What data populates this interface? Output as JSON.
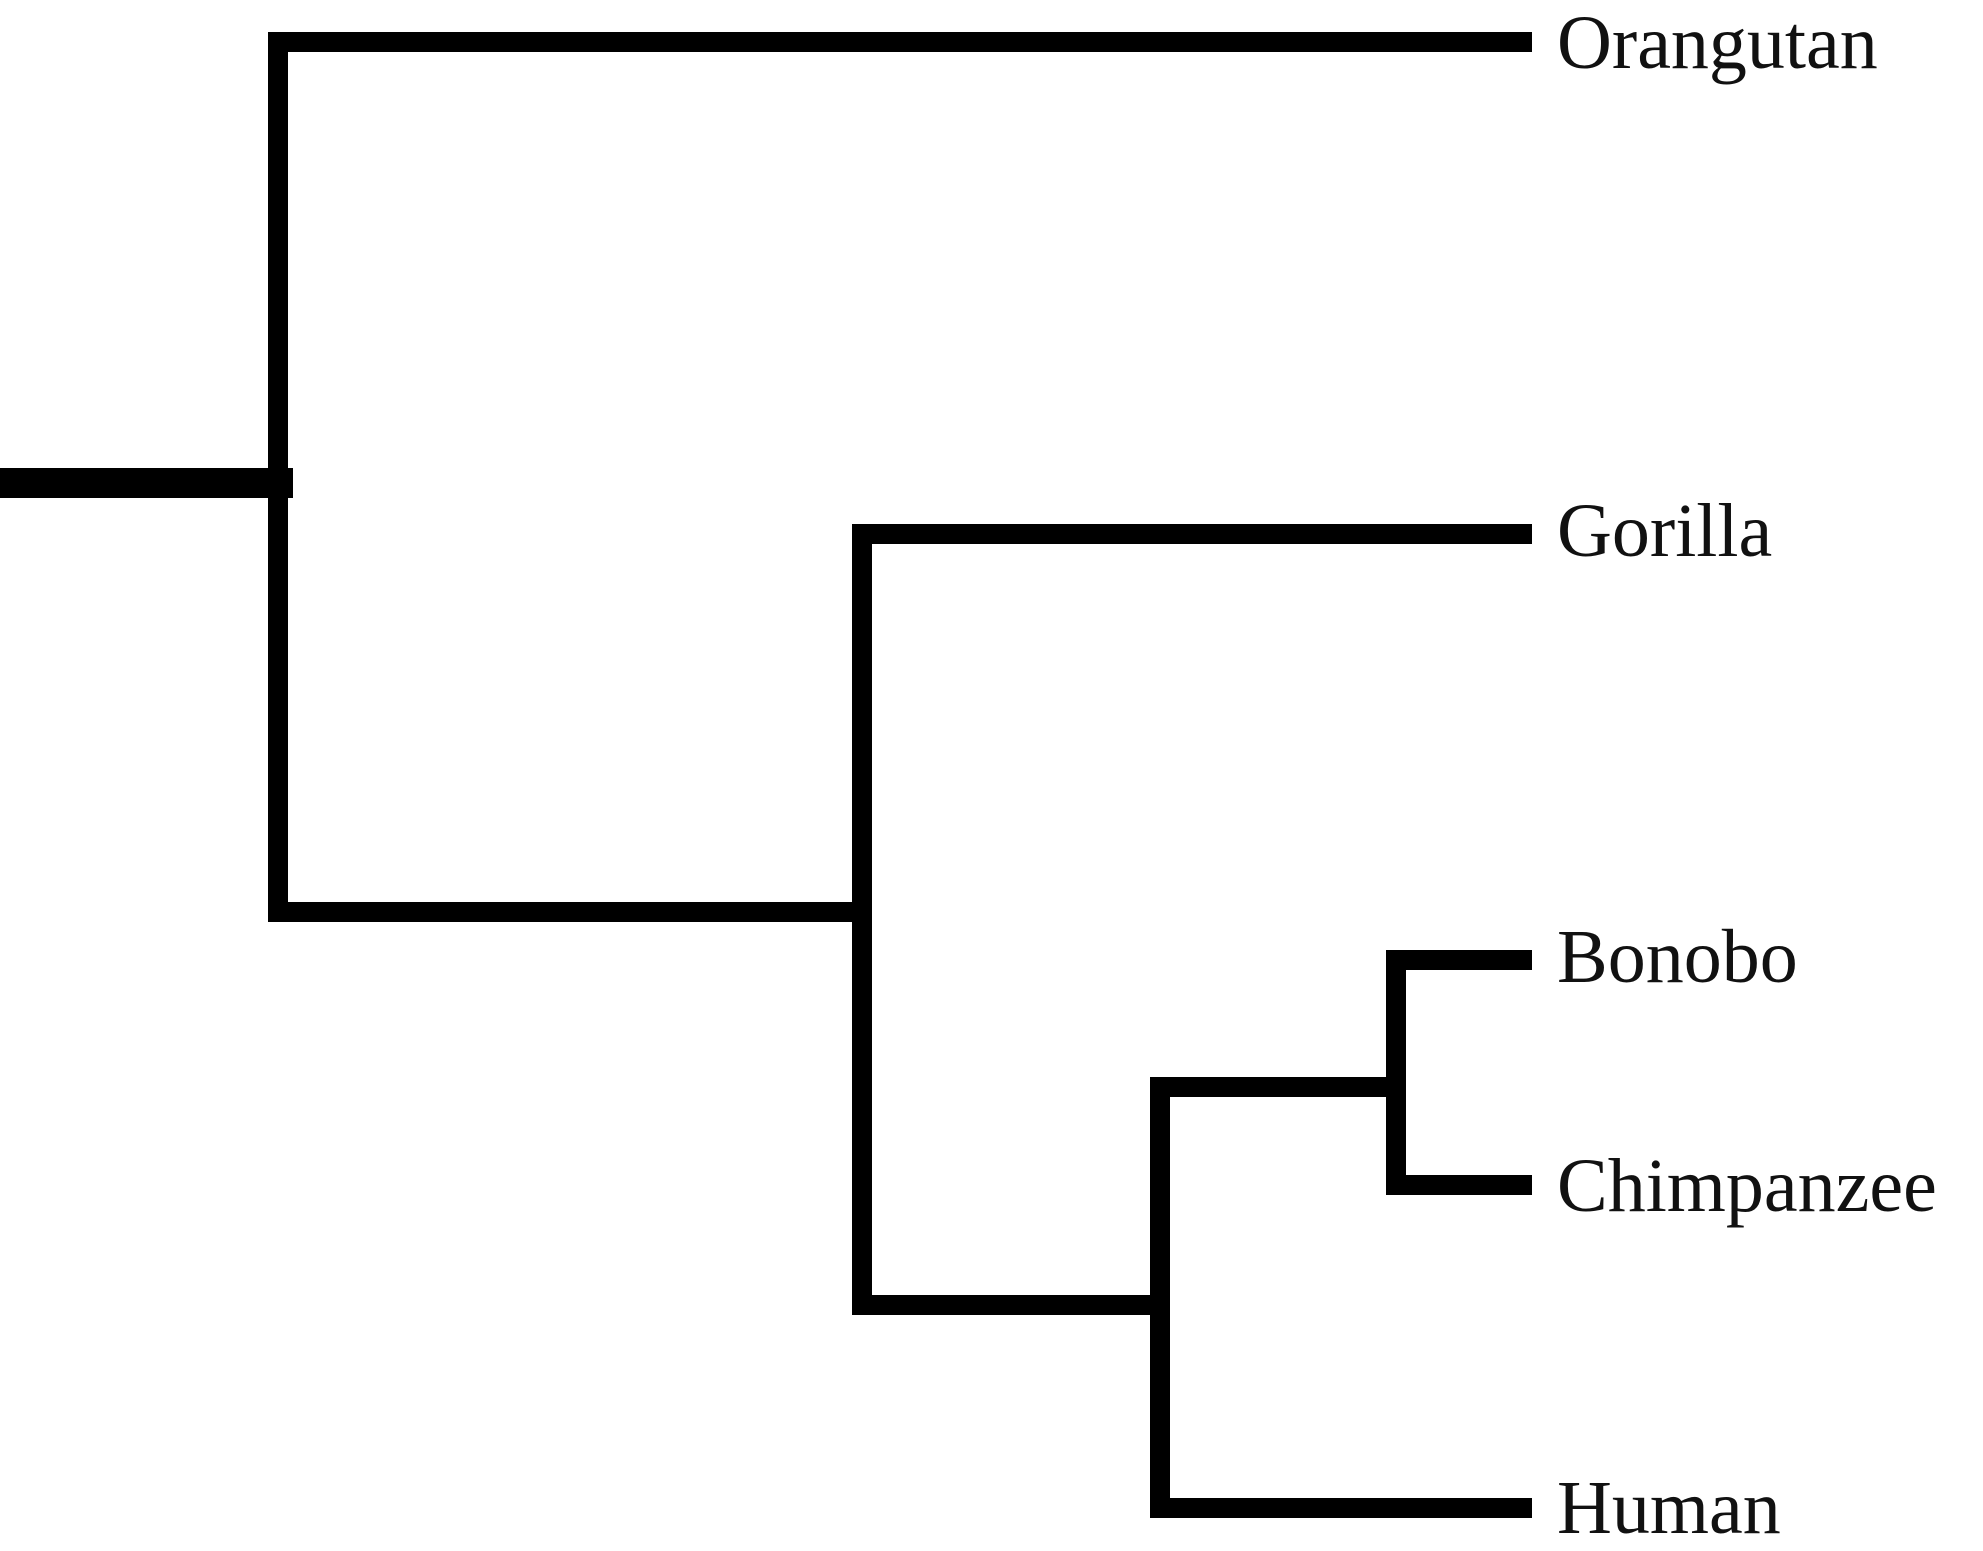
{
  "tree": {
    "type": "phylogenetic-cladogram",
    "orientation": "left-to-right",
    "line_color": "#000000",
    "taxa": [
      {
        "id": "orangutan",
        "label": "Orangutan"
      },
      {
        "id": "gorilla",
        "label": "Gorilla"
      },
      {
        "id": "bonobo",
        "label": "Bonobo"
      },
      {
        "id": "chimpanzee",
        "label": "Chimpanzee"
      },
      {
        "id": "human",
        "label": "Human"
      }
    ],
    "topology": "(Orangutan,(Gorilla,((Bonobo,Chimpanzee),Human)))"
  }
}
